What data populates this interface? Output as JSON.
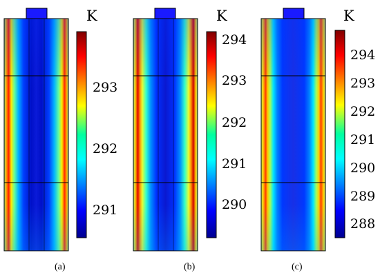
{
  "panels": [
    {
      "id": "a",
      "label": "(a)",
      "unit": "K",
      "colorbar_min": 290.5,
      "colorbar_max": 293.8,
      "ticks": [
        "291",
        "292",
        "293"
      ],
      "tick_values": [
        291,
        292,
        293
      ]
    },
    {
      "id": "b",
      "label": "(b)",
      "unit": "K",
      "colorbar_min": 289.4,
      "colorbar_max": 294.3,
      "ticks": [
        "290",
        "291",
        "292",
        "293",
        "294"
      ],
      "tick_values": [
        290,
        291,
        292,
        293,
        294
      ]
    },
    {
      "id": "c",
      "label": "(c)",
      "unit": "K",
      "colorbar_min": 287.5,
      "colorbar_max": 294.7,
      "ticks": [
        "288",
        "289",
        "290",
        "291",
        "292",
        "293",
        "294"
      ],
      "tick_values": [
        288,
        289,
        290,
        291,
        292,
        293,
        294
      ]
    }
  ],
  "colors": {
    "jet_low": "#00008f",
    "jet_high": "#800000",
    "inlet_block": "#1a1aff",
    "outline": "#000000"
  }
}
